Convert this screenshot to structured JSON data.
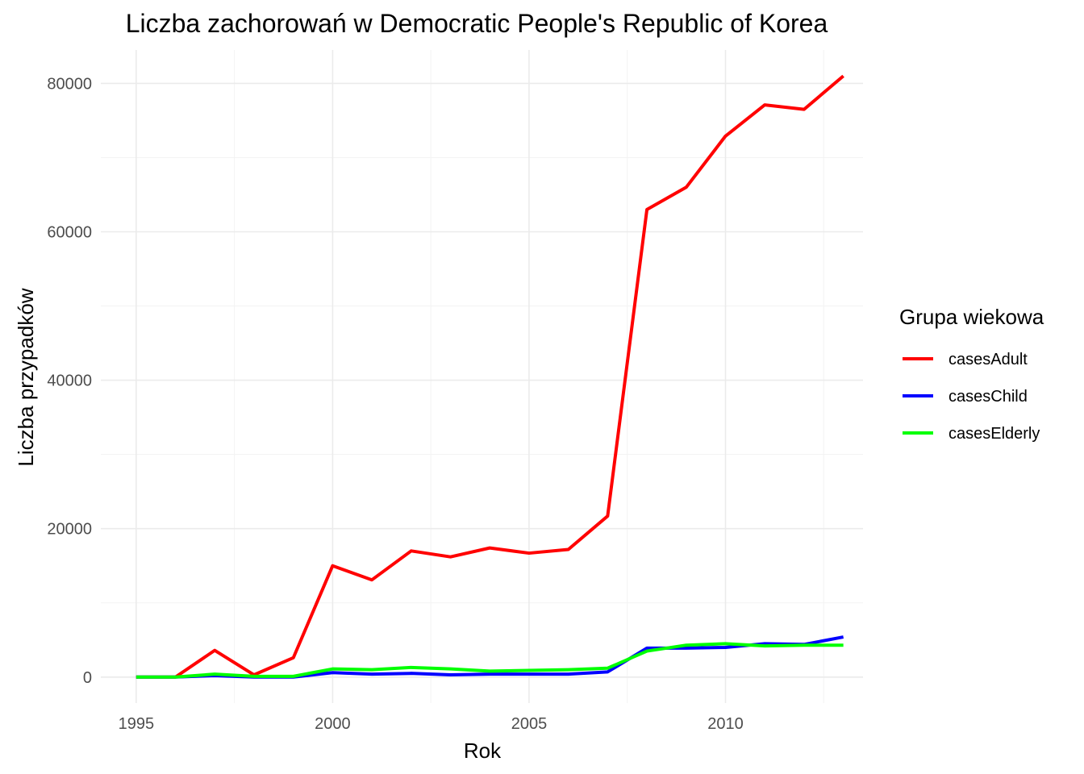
{
  "chart_data": {
    "type": "line",
    "title": "Liczba zachorowań w Democratic People's Republic of Korea",
    "xlabel": "Rok",
    "ylabel": "Liczba przypadków",
    "x": [
      1995,
      1996,
      1997,
      1998,
      1999,
      2000,
      2001,
      2002,
      2003,
      2004,
      2005,
      2006,
      2007,
      2008,
      2009,
      2010,
      2011,
      2012,
      2013
    ],
    "xlim": [
      1994.1,
      2013.5
    ],
    "ylim": [
      -3500,
      84500
    ],
    "x_ticks": [
      1995,
      2000,
      2005,
      2010
    ],
    "y_ticks": [
      0,
      20000,
      40000,
      60000,
      80000
    ],
    "x_tick_labels": [
      "1995",
      "2000",
      "2005",
      "2010"
    ],
    "y_tick_labels": [
      "0",
      "20000",
      "40000",
      "60000",
      "80000"
    ],
    "grid": true,
    "legend": {
      "title": "Grupa wiekowa",
      "position": "right"
    },
    "series": [
      {
        "name": "casesAdult",
        "color": "#ff0000",
        "values": [
          0,
          0,
          3600,
          300,
          2600,
          15000,
          13100,
          17000,
          16200,
          17400,
          16700,
          17200,
          21700,
          63000,
          66000,
          72900,
          77100,
          76500,
          81000
        ]
      },
      {
        "name": "casesChild",
        "color": "#0000ff",
        "values": [
          0,
          0,
          200,
          0,
          0,
          600,
          400,
          500,
          300,
          400,
          400,
          400,
          700,
          3900,
          3900,
          4000,
          4500,
          4400,
          5400
        ]
      },
      {
        "name": "casesElderly",
        "color": "#00ff00",
        "values": [
          0,
          0,
          400,
          100,
          100,
          1100,
          1000,
          1300,
          1100,
          800,
          900,
          1000,
          1200,
          3500,
          4300,
          4500,
          4200,
          4300,
          4300
        ]
      }
    ]
  }
}
